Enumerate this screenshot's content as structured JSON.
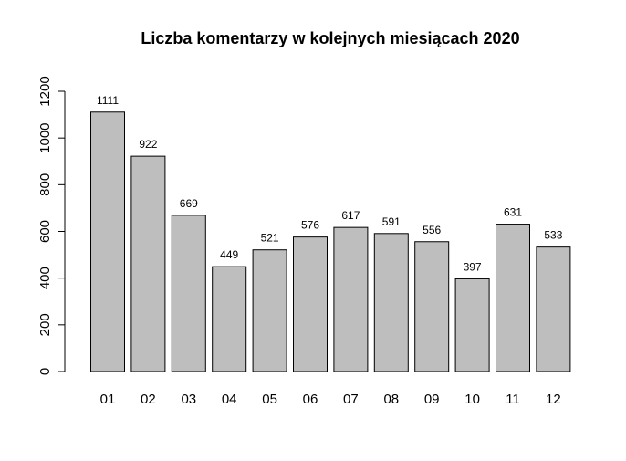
{
  "chart_data": {
    "type": "bar",
    "title": "Liczba komentarzy w kolejnych miesiącach 2020",
    "xlabel": "",
    "ylabel": "",
    "categories": [
      "01",
      "02",
      "03",
      "04",
      "05",
      "06",
      "07",
      "08",
      "09",
      "10",
      "11",
      "12"
    ],
    "values": [
      1111,
      922,
      669,
      449,
      521,
      576,
      617,
      591,
      556,
      397,
      631,
      533
    ],
    "value_labels": [
      "1111",
      "922",
      "669",
      "449",
      "521",
      "576",
      "617",
      "591",
      "556",
      "397",
      "631",
      "533"
    ],
    "ylim": [
      0,
      1200
    ],
    "yticks": [
      0,
      200,
      400,
      600,
      800,
      1000,
      1200
    ],
    "ytick_labels": [
      "0",
      "200",
      "400",
      "600",
      "800",
      "1000",
      "1200"
    ],
    "grid": false,
    "legend": "none",
    "bar_color": "#bebebe",
    "bar_border_color": "#000000"
  }
}
